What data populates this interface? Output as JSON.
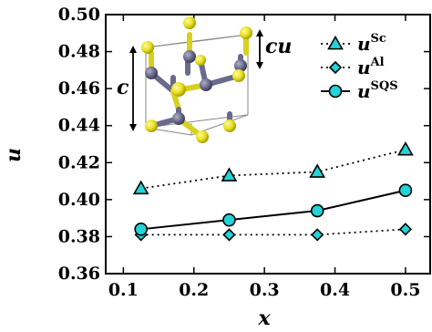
{
  "chart_data": {
    "type": "line",
    "xlabel": "x",
    "ylabel": "u",
    "xlim": [
      0.075,
      0.535
    ],
    "ylim": [
      0.36,
      0.5
    ],
    "xticks": [
      "0.1",
      "0.2",
      "0.3",
      "0.4",
      "0.5"
    ],
    "xtick_values": [
      0.1,
      0.2,
      0.3,
      0.4,
      0.5
    ],
    "yticks": [
      "0.36",
      "0.38",
      "0.40",
      "0.42",
      "0.44",
      "0.46",
      "0.48",
      "0.50"
    ],
    "ytick_values": [
      0.36,
      0.38,
      0.4,
      0.42,
      0.44,
      0.46,
      0.48,
      0.5
    ],
    "legend_position": "top-right",
    "series": [
      {
        "name": "u",
        "superscript": "Sc",
        "marker": "triangle",
        "line_style": "dotted",
        "color": "#000000",
        "marker_fill": "#22d3d9",
        "x": [
          0.125,
          0.25,
          0.375,
          0.5
        ],
        "y": [
          0.406,
          0.413,
          0.415,
          0.427
        ]
      },
      {
        "name": "u",
        "superscript": "Al",
        "marker": "diamond",
        "line_style": "dotted",
        "color": "#000000",
        "marker_fill": "#22d3d9",
        "x": [
          0.125,
          0.25,
          0.375,
          0.5
        ],
        "y": [
          0.381,
          0.381,
          0.381,
          0.384
        ]
      },
      {
        "name": "u",
        "superscript": "SQS",
        "marker": "circle",
        "line_style": "solid",
        "color": "#000000",
        "marker_fill": "#22d3d9",
        "x": [
          0.125,
          0.25,
          0.375,
          0.5
        ],
        "y": [
          0.384,
          0.389,
          0.394,
          0.405
        ]
      }
    ],
    "inset": {
      "c_label": "c",
      "cu_label": "cu",
      "atom_colors": {
        "yellow": "#e8e020",
        "gray": "#6a6a8c"
      }
    }
  }
}
